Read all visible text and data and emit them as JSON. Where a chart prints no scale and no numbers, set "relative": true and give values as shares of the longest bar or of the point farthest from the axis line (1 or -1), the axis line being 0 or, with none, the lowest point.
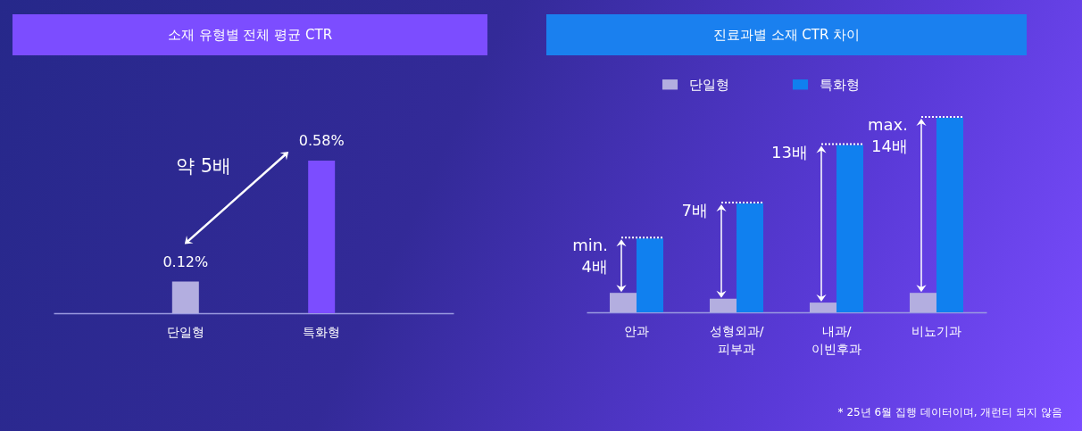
{
  "chart_data": [
    {
      "type": "bar",
      "title": "소재 유형별 전체 평균 CTR",
      "categories": [
        "단일형",
        "특화형"
      ],
      "values": [
        0.12,
        0.58
      ],
      "colors": [
        "#b3aee0",
        "#7c4dff"
      ],
      "value_labels": [
        "0.12%",
        "0.58%"
      ],
      "tick_labels": "x",
      "annotations": [
        "약 5배"
      ]
    },
    {
      "type": "bar",
      "title": "진료과별 소재 CTR 차이",
      "categories": [
        "안과",
        "성형외과/\n피부과",
        "내과/\n이빈후과",
        "비뇨기과"
      ],
      "relative": true,
      "legend": "top",
      "series": [
        {
          "name": "단일형",
          "color": "#b3aee0",
          "values": [
            0.1,
            0.07,
            0.05,
            0.1
          ]
        },
        {
          "name": "특화형",
          "color": "#1080ef",
          "values": [
            0.38,
            0.56,
            0.86,
            1
          ]
        }
      ],
      "annotations": [
        {
          "text": "min.\n4배",
          "x": "안과",
          "y": 0.38
        },
        {
          "text": "7배",
          "x": "성형외과/\n피부과",
          "y": 0.56
        },
        {
          "text": "13배",
          "x": "내과/\n이빈후과",
          "y": 0.86
        },
        {
          "text": "max.\n14배",
          "x": "비뇨기과",
          "y": 1
        },
        "* 25년 6월 집행 데이터이며, 개런티 되지 않음"
      ]
    }
  ]
}
